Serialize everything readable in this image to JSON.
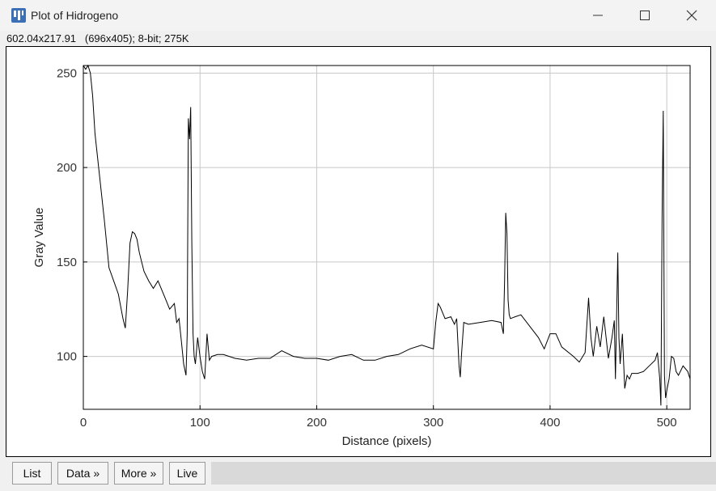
{
  "window": {
    "title": "Plot of Hidrogeno",
    "info": "602.04x217.91   (696x405); 8-bit; 275K"
  },
  "buttons": {
    "list": "List",
    "data": "Data »",
    "more": "More »",
    "live": "Live"
  },
  "chart_data": {
    "type": "line",
    "title": "",
    "xlabel": "Distance (pixels)",
    "ylabel": "Gray Value",
    "xlim": [
      0,
      520
    ],
    "ylim": [
      72,
      254
    ],
    "xticks": [
      0,
      100,
      200,
      300,
      400,
      500
    ],
    "yticks": [
      100,
      150,
      200,
      250
    ],
    "grid": true,
    "series": [
      {
        "color": "#000000",
        "x": [
          0,
          2,
          4,
          6,
          8,
          10,
          14,
          18,
          22,
          26,
          30,
          34,
          36,
          38,
          40,
          42,
          44,
          46,
          48,
          52,
          56,
          60,
          64,
          66,
          70,
          74,
          78,
          80,
          82,
          84,
          86,
          88,
          89,
          90,
          91,
          92,
          93,
          94,
          95,
          96,
          98,
          100,
          102,
          104,
          106,
          108,
          110,
          115,
          120,
          130,
          140,
          150,
          160,
          170,
          180,
          190,
          200,
          210,
          220,
          230,
          240,
          250,
          260,
          270,
          280,
          290,
          300,
          302,
          304,
          306,
          310,
          315,
          318,
          320,
          322,
          323,
          324,
          326,
          330,
          340,
          350,
          358,
          360,
          361,
          362,
          363,
          364,
          365,
          366,
          370,
          375,
          380,
          390,
          395,
          400,
          405,
          410,
          420,
          425,
          430,
          433,
          435,
          437,
          440,
          443,
          446,
          450,
          453,
          455,
          456,
          458,
          459,
          460,
          462,
          464,
          466,
          468,
          470,
          475,
          480,
          485,
          490,
          492,
          494,
          495,
          496,
          497,
          498,
          499,
          500,
          502,
          504,
          506,
          508,
          510,
          514,
          518,
          520
        ],
        "y": [
          254,
          252,
          254,
          250,
          238,
          218,
          195,
          172,
          147,
          140,
          133,
          120,
          115,
          135,
          160,
          166,
          165,
          162,
          155,
          145,
          140,
          136,
          140,
          137,
          131,
          125,
          128,
          118,
          120,
          108,
          96,
          90,
          112,
          226,
          215,
          232,
          160,
          112,
          100,
          96,
          110,
          100,
          92,
          88,
          112,
          98,
          100,
          101,
          101,
          99,
          98,
          99,
          99,
          103,
          100,
          99,
          99,
          98,
          100,
          101,
          98,
          98,
          100,
          101,
          104,
          106,
          104,
          118,
          128,
          126,
          120,
          121,
          117,
          120,
          95,
          89,
          100,
          118,
          117,
          118,
          119,
          118,
          112,
          140,
          176,
          165,
          130,
          122,
          120,
          121,
          122,
          118,
          110,
          104,
          112,
          112,
          105,
          100,
          97,
          102,
          131,
          110,
          100,
          116,
          105,
          121,
          99,
          110,
          119,
          88,
          155,
          110,
          96,
          112,
          83,
          90,
          88,
          91,
          91,
          92,
          95,
          98,
          102,
          88,
          74,
          175,
          230,
          90,
          78,
          82,
          88,
          100,
          99,
          92,
          90,
          95,
          92,
          88
        ]
      }
    ]
  }
}
